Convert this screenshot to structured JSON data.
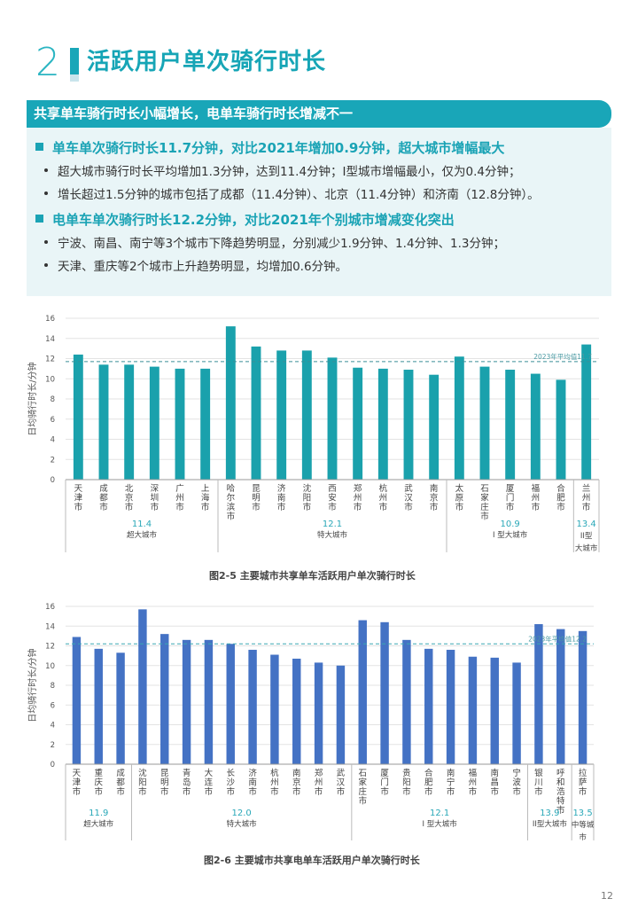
{
  "section": {
    "number": "2",
    "title": "活跃用户单次骑行时长"
  },
  "banner": "共享单车骑行时长小幅增长，电单车骑行时长增减不一",
  "points": [
    {
      "heading": "单车单次骑行时长11.7分钟，对比2021年增加0.9分钟，超大城市增幅最大",
      "bullets": [
        "超大城市骑行时长平均增加1.3分钟，达到11.4分钟；I型城市增幅最小，仅为0.4分钟；",
        "增长超过1.5分钟的城市包括了成都（11.4分钟）、北京（11.4分钟）和济南（12.8分钟）。"
      ]
    },
    {
      "heading": "电单车单次骑行时长12.2分钟，对比2021年个别城市增减变化突出",
      "bullets": [
        "宁波、南昌、南宁等3个城市下降趋势明显，分别减少1.9分钟、1.4分钟、1.3分钟；",
        "天津、重庆等2个城市上升趋势明显，均增加0.6分钟。"
      ]
    }
  ],
  "chart_data": [
    {
      "type": "bar",
      "title": "图2-5 主要城市共享单车活跃用户单次骑行时长",
      "ylabel": "日均骑行时长/分钟",
      "ylim": [
        0,
        16
      ],
      "yticks": [
        "0",
        "2",
        "4",
        "6",
        "8",
        "10",
        "12",
        "14",
        "16"
      ],
      "color": "#1aa1ac",
      "reference": {
        "label": "2023年平均值11.7",
        "value": 11.7
      },
      "categories": [
        "天津市",
        "成都市",
        "北京市",
        "深圳市",
        "广州市",
        "上海市",
        "哈尔滨市",
        "昆明市",
        "济南市",
        "沈阳市",
        "西安市",
        "郑州市",
        "杭州市",
        "武汉市",
        "南京市",
        "太原市",
        "石家庄市",
        "厦门市",
        "福州市",
        "合肥市",
        "兰州市"
      ],
      "values": [
        12.4,
        11.4,
        11.4,
        11.2,
        11.0,
        11.0,
        15.2,
        13.2,
        12.8,
        12.8,
        12.1,
        11.1,
        11.0,
        10.9,
        10.4,
        12.2,
        11.2,
        10.9,
        10.5,
        9.9,
        13.4
      ],
      "groups": [
        {
          "avg": "11.4",
          "name": "超大城市",
          "start": 0,
          "end": 5
        },
        {
          "avg": "12.1",
          "name": "特大城市",
          "start": 6,
          "end": 14
        },
        {
          "avg": "10.9",
          "name": "I 型大城市",
          "start": 15,
          "end": 19
        },
        {
          "avg": "13.4",
          "name": "II型大城市",
          "start": 20,
          "end": 20
        }
      ]
    },
    {
      "type": "bar",
      "title": "图2-6 主要城市共享电单车活跃用户单次骑行时长",
      "ylabel": "日均骑行时长/分钟",
      "ylim": [
        0,
        16
      ],
      "yticks": [
        "0",
        "2",
        "4",
        "6",
        "8",
        "10",
        "12",
        "14",
        "16"
      ],
      "color": "#4472c4",
      "reference": {
        "label": "2023年平均值12.2",
        "value": 12.2
      },
      "categories": [
        "天津市",
        "重庆市",
        "成都市",
        "沈阳市",
        "昆明市",
        "青岛市",
        "大连市",
        "长沙市",
        "济南市",
        "杭州市",
        "南京市",
        "郑州市",
        "武汉市",
        "石家庄市",
        "厦门市",
        "贵阳市",
        "合肥市",
        "南宁市",
        "福州市",
        "南昌市",
        "宁波市",
        "银川市",
        "呼和浩特市",
        "拉萨市"
      ],
      "values": [
        12.9,
        11.7,
        11.3,
        15.7,
        13.2,
        12.6,
        12.6,
        12.2,
        11.6,
        11.1,
        10.7,
        10.3,
        10.0,
        14.6,
        14.4,
        12.6,
        11.7,
        11.6,
        10.9,
        10.8,
        10.3,
        14.2,
        13.7,
        13.5
      ],
      "groups": [
        {
          "avg": "11.9",
          "name": "超大城市",
          "start": 0,
          "end": 2
        },
        {
          "avg": "12.0",
          "name": "特大城市",
          "start": 3,
          "end": 12
        },
        {
          "avg": "12.1",
          "name": "I 型大城市",
          "start": 13,
          "end": 20
        },
        {
          "avg": "13.9",
          "name": "II型大城市",
          "start": 21,
          "end": 22
        },
        {
          "avg": "13.5",
          "name": "中等城市",
          "start": 23,
          "end": 23
        }
      ]
    }
  ],
  "page_number": "12"
}
